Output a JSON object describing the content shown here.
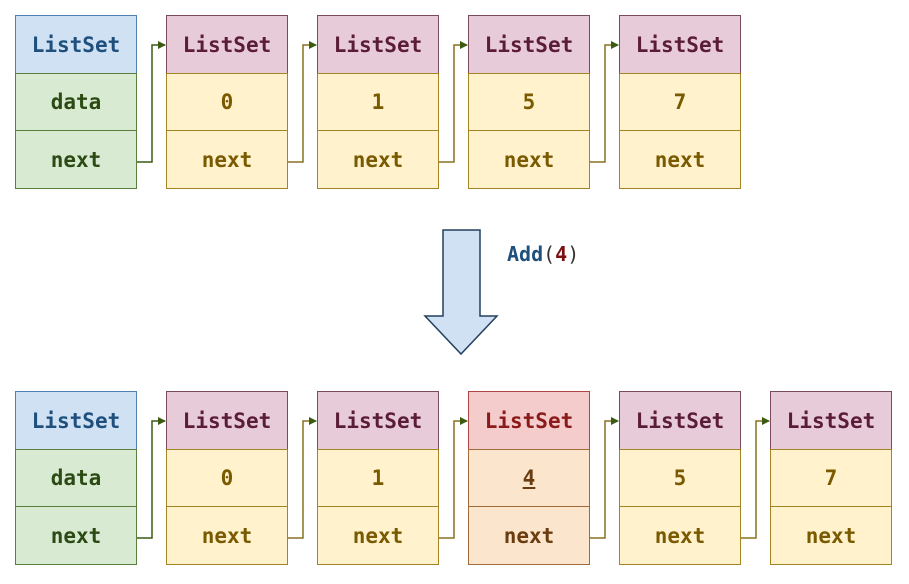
{
  "before": {
    "head": {
      "title": "ListSet",
      "data": "data",
      "next": "next"
    },
    "nodes": [
      {
        "title": "ListSet",
        "value": "0",
        "next": "next"
      },
      {
        "title": "ListSet",
        "value": "1",
        "next": "next"
      },
      {
        "title": "ListSet",
        "value": "5",
        "next": "next"
      },
      {
        "title": "ListSet",
        "value": "7",
        "next": "next"
      }
    ]
  },
  "operation": {
    "name": "Add",
    "open": "(",
    "arg": "4",
    "close": ")"
  },
  "after": {
    "head": {
      "title": "ListSet",
      "data": "data",
      "next": "next"
    },
    "nodes": [
      {
        "title": "ListSet",
        "value": "0",
        "next": "next"
      },
      {
        "title": "ListSet",
        "value": "1",
        "next": "next"
      },
      {
        "title": "ListSet",
        "value": "4",
        "next": "next"
      },
      {
        "title": "ListSet",
        "value": "5",
        "next": "next"
      },
      {
        "title": "ListSet",
        "value": "7",
        "next": "next"
      }
    ]
  },
  "colors": {
    "head_title": "#cfe1f3",
    "head_body": "#d9ead3",
    "node_title": "#e8cbd9",
    "node_body": "#fff2cc",
    "new_title": "#f4cccc",
    "new_body": "#fce5cd",
    "link": "#3d5a12",
    "arrow_fill": "#cfe1f3",
    "arrow_stroke": "#23405e"
  }
}
